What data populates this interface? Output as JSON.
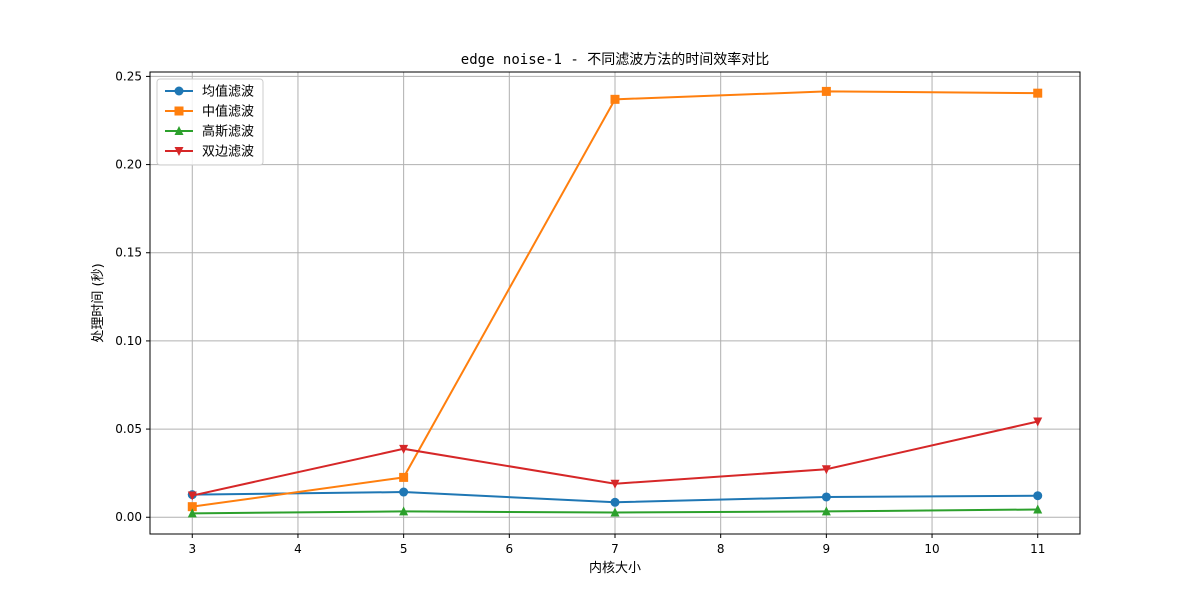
{
  "chart_data": {
    "type": "line",
    "title": "edge noise-1 - 不同滤波方法的时间效率对比",
    "xlabel": "内核大小",
    "ylabel": "处理时间 (秒)",
    "x": [
      3,
      5,
      7,
      9,
      11
    ],
    "xlim": [
      2.6,
      11.4
    ],
    "ylim": [
      -0.0095,
      0.2525
    ],
    "xticks": [
      "3",
      "4",
      "5",
      "6",
      "7",
      "8",
      "9",
      "10",
      "11"
    ],
    "yticks": [
      "0.00",
      "0.05",
      "0.10",
      "0.15",
      "0.20",
      "0.25"
    ],
    "grid": true,
    "legend_position": "upper left",
    "series": [
      {
        "name": "均值滤波",
        "color": "#1f77b4",
        "marker": "circle",
        "values": [
          0.0128,
          0.0143,
          0.0085,
          0.0115,
          0.0122
        ]
      },
      {
        "name": "中值滤波",
        "color": "#ff7f0e",
        "marker": "square",
        "values": [
          0.006,
          0.0226,
          0.237,
          0.2415,
          0.2405
        ]
      },
      {
        "name": "高斯滤波",
        "color": "#2ca02c",
        "marker": "triangle-up",
        "values": [
          0.0022,
          0.0033,
          0.0027,
          0.0033,
          0.0044
        ]
      },
      {
        "name": "双边滤波",
        "color": "#d62728",
        "marker": "triangle-down",
        "values": [
          0.0123,
          0.0388,
          0.019,
          0.0272,
          0.0543
        ]
      }
    ]
  }
}
